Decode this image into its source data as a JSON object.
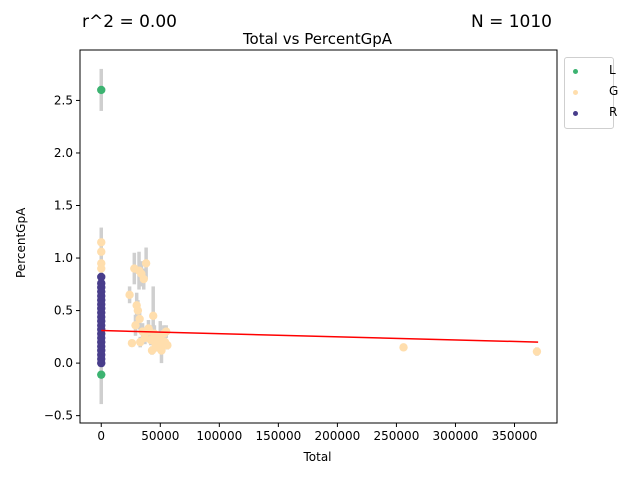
{
  "chart_data": {
    "type": "scatter",
    "title": "Total vs PercentGpA",
    "xlabel": "Total",
    "ylabel": "PercentGpA",
    "annotations": {
      "r2": "r^2 = 0.00",
      "n": "N = 1010"
    },
    "xlim": [
      -18000,
      386000
    ],
    "ylim": [
      -0.57,
      2.98
    ],
    "x_ticks": [
      0,
      50000,
      100000,
      150000,
      200000,
      250000,
      300000,
      350000
    ],
    "x_tick_labels": [
      "0",
      "50000",
      "100000",
      "150000",
      "200000",
      "250000",
      "300000",
      "350000"
    ],
    "y_ticks": [
      -0.5,
      0.0,
      0.5,
      1.0,
      1.5,
      2.0,
      2.5
    ],
    "y_tick_labels": [
      "−0.5",
      "0.0",
      "0.5",
      "1.0",
      "1.5",
      "2.0",
      "2.5"
    ],
    "grid": false,
    "legend_position": "outside-top-right",
    "regression_line": {
      "x": [
        0,
        370000
      ],
      "y": [
        0.31,
        0.2
      ],
      "color": "#ff0000"
    },
    "series": [
      {
        "name": "L",
        "color": "#3cb371",
        "points": [
          {
            "x": 0,
            "y": 2.6,
            "err": 0.2
          },
          {
            "x": 0,
            "y": -0.11,
            "err": 0.28
          }
        ]
      },
      {
        "name": "G",
        "color": "#ffdead",
        "points": [
          {
            "x": 0,
            "y": 1.15,
            "err": 0.14
          },
          {
            "x": 0,
            "y": 1.06,
            "err": 0.1
          },
          {
            "x": 0,
            "y": 0.95,
            "err": 0.08
          },
          {
            "x": 0,
            "y": 0.9,
            "err": 0.08
          },
          {
            "x": 24000,
            "y": 0.65,
            "err": 0.08
          },
          {
            "x": 26000,
            "y": 0.19,
            "err": 0.03
          },
          {
            "x": 28000,
            "y": 0.9,
            "err": 0.15
          },
          {
            "x": 29000,
            "y": 0.36,
            "err": 0.1
          },
          {
            "x": 30000,
            "y": 0.55,
            "err": 0.12
          },
          {
            "x": 31000,
            "y": 0.5,
            "err": 0.1
          },
          {
            "x": 32000,
            "y": 0.88,
            "err": 0.18
          },
          {
            "x": 32500,
            "y": 0.42,
            "err": 0.1
          },
          {
            "x": 33000,
            "y": 0.2,
            "err": 0.05
          },
          {
            "x": 34000,
            "y": 0.85,
            "err": 0.12
          },
          {
            "x": 35000,
            "y": 0.3,
            "err": 0.08
          },
          {
            "x": 36000,
            "y": 0.8,
            "err": 0.1
          },
          {
            "x": 37000,
            "y": 0.24,
            "err": 0.06
          },
          {
            "x": 38000,
            "y": 0.95,
            "err": 0.15
          },
          {
            "x": 40000,
            "y": 0.33,
            "err": 0.08
          },
          {
            "x": 41000,
            "y": 0.3,
            "err": 0.06
          },
          {
            "x": 42000,
            "y": 0.22,
            "err": 0.05
          },
          {
            "x": 43000,
            "y": 0.12,
            "err": 0.04
          },
          {
            "x": 44000,
            "y": 0.45,
            "err": 0.28
          },
          {
            "x": 45000,
            "y": 0.28,
            "err": 0.08
          },
          {
            "x": 46000,
            "y": 0.18,
            "err": 0.05
          },
          {
            "x": 47000,
            "y": 0.15,
            "err": 0.04
          },
          {
            "x": 48000,
            "y": 0.22,
            "err": 0.06
          },
          {
            "x": 50000,
            "y": 0.25,
            "err": 0.15
          },
          {
            "x": 51000,
            "y": 0.12,
            "err": 0.12
          },
          {
            "x": 52000,
            "y": 0.18,
            "err": 0.04
          },
          {
            "x": 53000,
            "y": 0.28,
            "err": 0.08
          },
          {
            "x": 54000,
            "y": 0.2,
            "err": 0.05
          },
          {
            "x": 55000,
            "y": 0.3,
            "err": 0.06
          },
          {
            "x": 56000,
            "y": 0.17,
            "err": 0.04
          },
          {
            "x": 256000,
            "y": 0.15,
            "err": 0.03
          },
          {
            "x": 369000,
            "y": 0.11,
            "err": 0.04
          }
        ]
      },
      {
        "name": "R",
        "color": "#483d8b",
        "points": [
          {
            "x": 0,
            "y": 0.82,
            "err": 0.05
          },
          {
            "x": 0,
            "y": 0.76,
            "err": 0.05
          },
          {
            "x": 0,
            "y": 0.72,
            "err": 0.06
          },
          {
            "x": 0,
            "y": 0.68,
            "err": 0.06
          },
          {
            "x": 0,
            "y": 0.64,
            "err": 0.06
          },
          {
            "x": 0,
            "y": 0.6,
            "err": 0.08
          },
          {
            "x": 0,
            "y": 0.56,
            "err": 0.1
          },
          {
            "x": 0,
            "y": 0.52,
            "err": 0.12
          },
          {
            "x": 0,
            "y": 0.48,
            "err": 0.15
          },
          {
            "x": 0,
            "y": 0.44,
            "err": 0.18
          },
          {
            "x": 0,
            "y": 0.4,
            "err": 0.2
          },
          {
            "x": 0,
            "y": 0.36,
            "err": 0.22
          },
          {
            "x": 0,
            "y": 0.32,
            "err": 0.25
          },
          {
            "x": 0,
            "y": 0.28,
            "err": 0.28
          },
          {
            "x": 0,
            "y": 0.24,
            "err": 0.3
          },
          {
            "x": 0,
            "y": 0.2,
            "err": 0.3
          },
          {
            "x": 0,
            "y": 0.16,
            "err": 0.3
          },
          {
            "x": 0,
            "y": 0.12,
            "err": 0.3
          },
          {
            "x": 0,
            "y": 0.08,
            "err": 0.3
          },
          {
            "x": 0,
            "y": 0.04,
            "err": 0.3
          },
          {
            "x": 0,
            "y": 0.0,
            "err": 0.3
          }
        ]
      }
    ]
  }
}
